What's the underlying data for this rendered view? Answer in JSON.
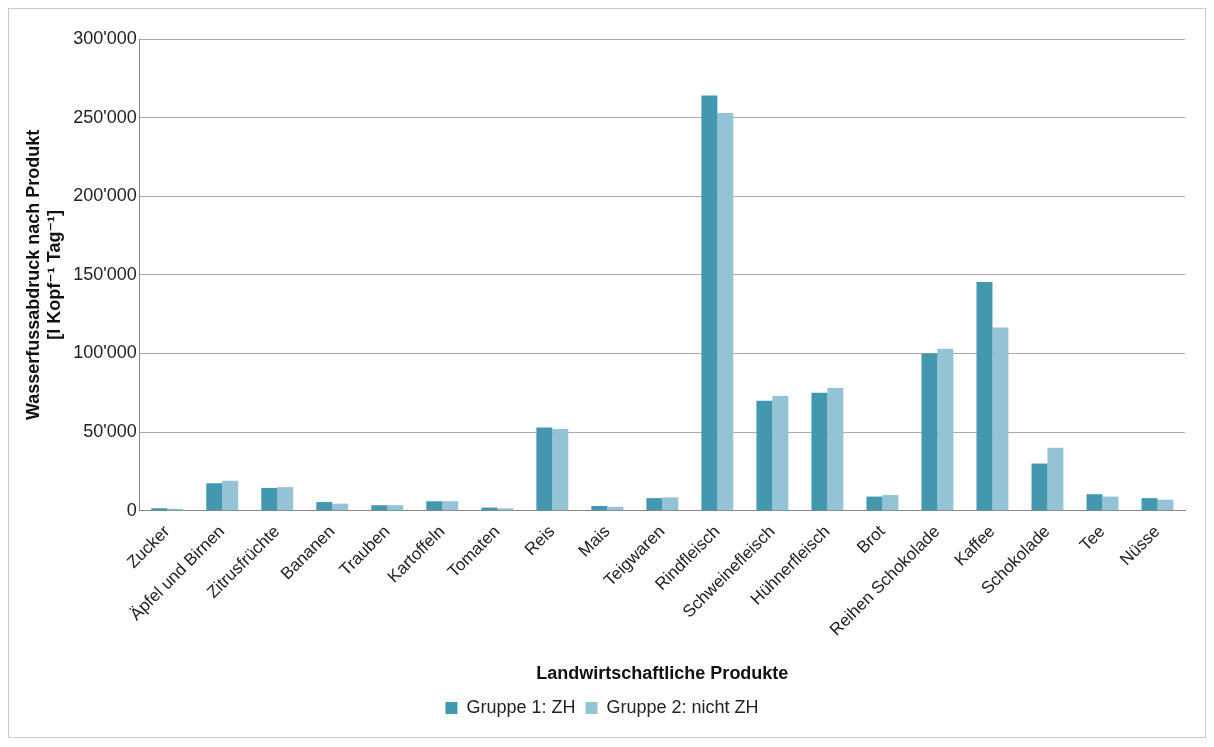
{
  "chart_data": {
    "type": "bar",
    "xlabel": "Landwirtschaftliche Produkte",
    "ylabel": [
      "Wasserfussabdruck nach Produkt",
      "[l Kopf⁻¹ Tag⁻¹]"
    ],
    "categories": [
      "Zucker",
      "Äpfel und Birnen",
      "Zitrusfrüchte",
      "Bananen",
      "Trauben",
      "Kartoffeln",
      "Tomaten",
      "Reis",
      "Mais",
      "Teigwaren",
      "Rindfleisch",
      "Schweinefleisch",
      "Hühnerfleisch",
      "Brot",
      "Reihen Schokolade",
      "Kaffee",
      "Schokolade",
      "Tee",
      "Nüsse"
    ],
    "series": [
      {
        "name": "Gruppe 1: ZH",
        "color": "#4398b0",
        "values": [
          1500,
          17500,
          14500,
          5500,
          3500,
          6000,
          2000,
          53000,
          3000,
          8000,
          264000,
          70000,
          75000,
          9000,
          100000,
          145500,
          30000,
          10500,
          8000
        ]
      },
      {
        "name": "Gruppe 2: nicht ZH",
        "color": "#93c3d5",
        "values": [
          1200,
          19000,
          15000,
          4500,
          3500,
          6000,
          1500,
          52000,
          2500,
          8500,
          253000,
          73000,
          78000,
          10000,
          103000,
          116500,
          40000,
          9000,
          7000
        ]
      }
    ],
    "ylim": [
      0,
      300000
    ],
    "yticks": [
      {
        "value": 0,
        "label": "0"
      },
      {
        "value": 50000,
        "label": "50'000"
      },
      {
        "value": 100000,
        "label": "100'000"
      },
      {
        "value": 150000,
        "label": "150'000"
      },
      {
        "value": 200000,
        "label": "200'000"
      },
      {
        "value": 250000,
        "label": "250'000"
      },
      {
        "value": 300000,
        "label": "300'000"
      }
    ],
    "grid": "y",
    "legend": "bottom"
  }
}
